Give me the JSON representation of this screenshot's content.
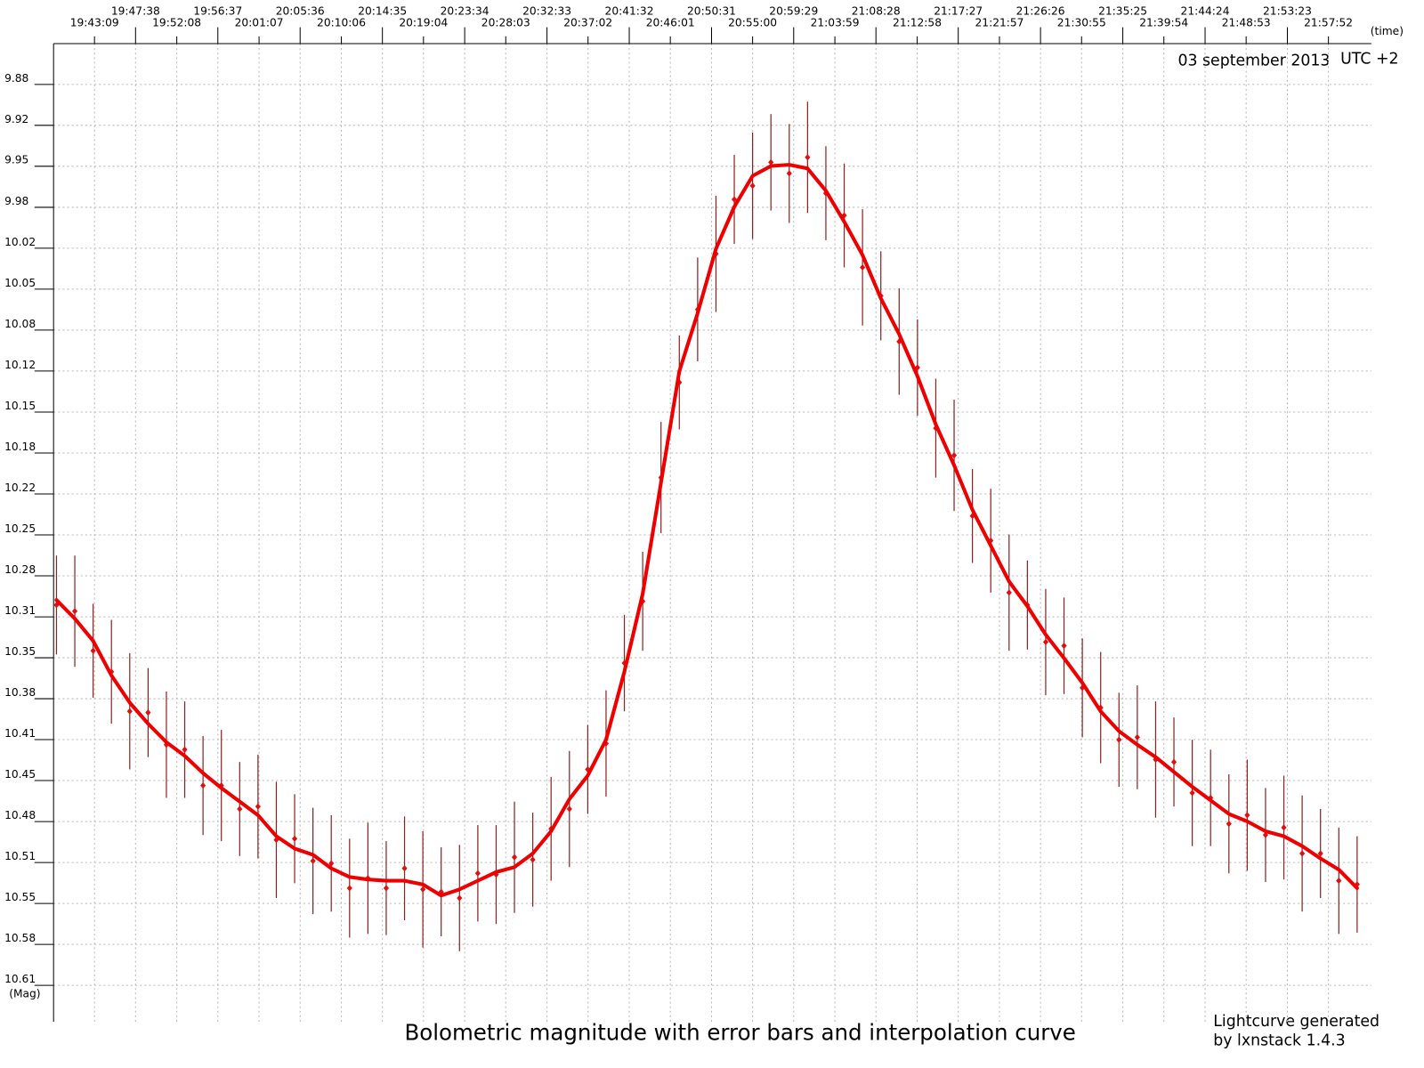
{
  "chart_data": {
    "type": "scatter",
    "title": "Bolometric  magnitude with error bars and interpolation curve",
    "x_label": "(time)",
    "y_label": "(Mag)",
    "date": "03 september 2013",
    "timezone": "UTC +2",
    "note": [
      "Lightcurve generated",
      "by lxnstack 1.4.3"
    ],
    "grid": true,
    "x_axis_position": "top",
    "xlim": [
      "19:38:41",
      "22:02:33"
    ],
    "xticks": [
      "19:43:09",
      "19:47:38",
      "19:52:08",
      "19:56:37",
      "20:01:07",
      "20:05:36",
      "20:10:06",
      "20:14:35",
      "20:19:04",
      "20:23:34",
      "20:28:03",
      "20:32:33",
      "20:37:02",
      "20:41:32",
      "20:46:01",
      "20:50:31",
      "20:55:00",
      "20:59:29",
      "21:03:59",
      "21:08:28",
      "21:12:58",
      "21:17:27",
      "21:21:57",
      "21:26:26",
      "21:30:55",
      "21:35:25",
      "21:39:54",
      "21:44:24",
      "21:48:53",
      "21:53:23",
      "21:57:52"
    ],
    "ylim": [
      10.642,
      9.851
    ],
    "yticks": [
      {
        "value": 9.884,
        "label": "9.88"
      },
      {
        "value": 9.9171,
        "label": "9.92"
      },
      {
        "value": 9.9502,
        "label": "9.95"
      },
      {
        "value": 9.9834,
        "label": "9.98"
      },
      {
        "value": 10.0165,
        "label": "10.02"
      },
      {
        "value": 10.0496,
        "label": "10.05"
      },
      {
        "value": 10.0827,
        "label": "10.08"
      },
      {
        "value": 10.1158,
        "label": "10.12"
      },
      {
        "value": 10.149,
        "label": "10.15"
      },
      {
        "value": 10.1821,
        "label": "10.18"
      },
      {
        "value": 10.2152,
        "label": "10.22"
      },
      {
        "value": 10.2483,
        "label": "10.25"
      },
      {
        "value": 10.2814,
        "label": "10.28"
      },
      {
        "value": 10.3146,
        "label": "10.31"
      },
      {
        "value": 10.3477,
        "label": "10.35"
      },
      {
        "value": 10.3808,
        "label": "10.38"
      },
      {
        "value": 10.4139,
        "label": "10.41"
      },
      {
        "value": 10.447,
        "label": "10.45"
      },
      {
        "value": 10.4802,
        "label": "10.48"
      },
      {
        "value": 10.5133,
        "label": "10.51"
      },
      {
        "value": 10.5464,
        "label": "10.55"
      },
      {
        "value": 10.5795,
        "label": "10.58"
      },
      {
        "value": 10.6126,
        "label": "10.61"
      }
    ],
    "x": [
      "19:39:00",
      "19:41:00",
      "19:43:00",
      "19:45:00",
      "19:47:00",
      "19:49:00",
      "19:51:00",
      "19:53:00",
      "19:55:00",
      "19:57:00",
      "19:59:00",
      "20:01:00",
      "20:03:00",
      "20:05:00",
      "20:07:00",
      "20:09:00",
      "20:11:00",
      "20:13:00",
      "20:15:00",
      "20:17:00",
      "20:19:00",
      "20:21:00",
      "20:23:00",
      "20:25:00",
      "20:27:00",
      "20:29:00",
      "20:31:00",
      "20:33:00",
      "20:35:00",
      "20:37:00",
      "20:39:00",
      "20:41:00",
      "20:43:00",
      "20:45:00",
      "20:47:00",
      "20:49:00",
      "20:51:00",
      "20:53:00",
      "20:55:00",
      "20:57:00",
      "20:59:00",
      "21:01:00",
      "21:03:00",
      "21:05:00",
      "21:07:00",
      "21:09:00",
      "21:11:00",
      "21:13:00",
      "21:15:00",
      "21:17:00",
      "21:19:00",
      "21:21:00",
      "21:23:00",
      "21:25:00",
      "21:27:00",
      "21:29:00",
      "21:31:00",
      "21:33:00",
      "21:35:00",
      "21:37:00",
      "21:39:00",
      "21:41:00",
      "21:43:00",
      "21:45:00",
      "21:47:00",
      "21:49:00",
      "21:51:00",
      "21:53:00",
      "21:55:00",
      "21:57:00",
      "21:59:00",
      "22:01:00"
    ],
    "series": [
      {
        "type": "scatter",
        "color": "#e01010",
        "error_color": "#8b2323",
        "values": [
          10.305,
          10.31,
          10.342,
          10.359,
          10.391,
          10.392,
          10.418,
          10.422,
          10.451,
          10.451,
          10.47,
          10.468,
          10.495,
          10.494,
          10.512,
          10.514,
          10.534,
          10.526,
          10.534,
          10.518,
          10.535,
          10.537,
          10.542,
          10.522,
          10.523,
          10.509,
          10.511,
          10.486,
          10.47,
          10.438,
          10.417,
          10.352,
          10.302,
          10.202,
          10.125,
          10.066,
          10.021,
          9.977,
          9.966,
          9.947,
          9.956,
          9.943,
          9.972,
          9.99,
          10.032,
          10.055,
          10.092,
          10.113,
          10.162,
          10.184,
          10.233,
          10.253,
          10.295,
          10.305,
          10.335,
          10.338,
          10.372,
          10.388,
          10.414,
          10.412,
          10.43,
          10.432,
          10.457,
          10.461,
          10.482,
          10.475,
          10.491,
          10.485,
          10.506,
          10.506,
          10.528,
          10.531
        ],
        "errors": [
          0.04,
          0.045,
          0.038,
          0.042,
          0.047,
          0.036,
          0.043,
          0.039,
          0.04,
          0.045,
          0.038,
          0.042,
          0.047,
          0.036,
          0.043,
          0.039,
          0.04,
          0.045,
          0.038,
          0.042,
          0.047,
          0.036,
          0.043,
          0.039,
          0.04,
          0.045,
          0.038,
          0.042,
          0.047,
          0.036,
          0.043,
          0.039,
          0.04,
          0.045,
          0.038,
          0.042,
          0.047,
          0.036,
          0.043,
          0.039,
          0.04,
          0.045,
          0.038,
          0.042,
          0.047,
          0.036,
          0.043,
          0.039,
          0.04,
          0.045,
          0.038,
          0.042,
          0.047,
          0.036,
          0.043,
          0.039,
          0.04,
          0.045,
          0.038,
          0.042,
          0.047,
          0.036,
          0.043,
          0.039,
          0.04,
          0.045,
          0.038,
          0.042,
          0.047,
          0.036,
          0.043,
          0.039
        ]
      },
      {
        "type": "line",
        "color": "#ee0000",
        "values": [
          10.301,
          10.316,
          10.334,
          10.362,
          10.384,
          10.401,
          10.416,
          10.427,
          10.441,
          10.453,
          10.464,
          10.475,
          10.492,
          10.502,
          10.507,
          10.518,
          10.525,
          10.527,
          10.528,
          10.528,
          10.531,
          10.54,
          10.535,
          10.528,
          10.521,
          10.517,
          10.506,
          10.488,
          10.462,
          10.443,
          10.414,
          10.359,
          10.296,
          10.206,
          10.116,
          10.069,
          10.017,
          9.983,
          9.958,
          9.95,
          9.949,
          9.952,
          9.97,
          9.995,
          10.022,
          10.057,
          10.086,
          10.12,
          10.159,
          10.192,
          10.228,
          10.257,
          10.286,
          10.306,
          10.329,
          10.348,
          10.368,
          10.391,
          10.407,
          10.418,
          10.428,
          10.44,
          10.452,
          10.463,
          10.474,
          10.48,
          10.488,
          10.492,
          10.5,
          10.51,
          10.519,
          10.534
        ]
      }
    ]
  }
}
